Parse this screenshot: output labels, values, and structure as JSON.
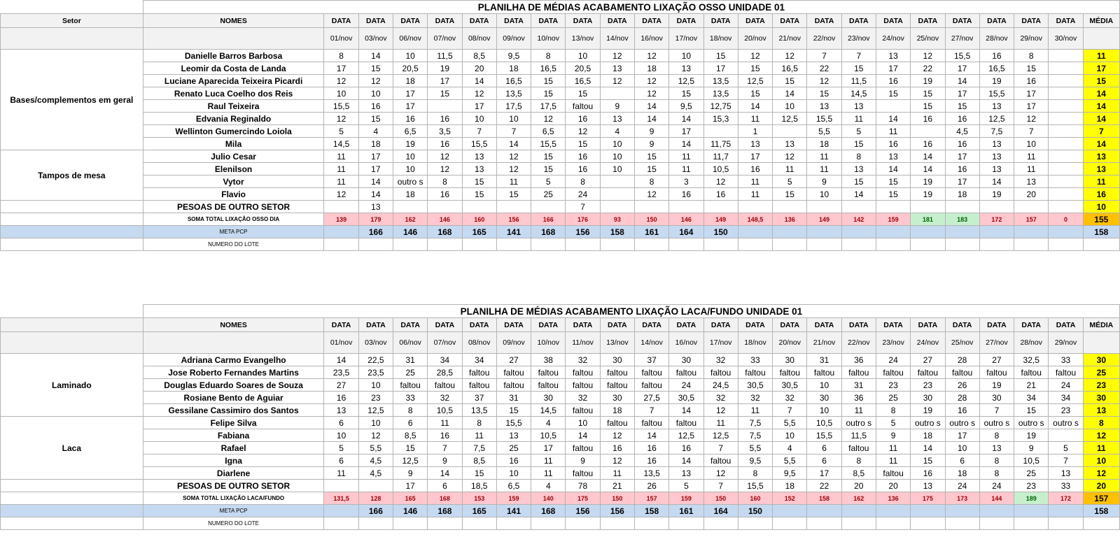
{
  "table1": {
    "title": "PLANILHA DE MÉDIAS ACABAMENTO LIXAÇÃO OSSO UNIDADE 01",
    "sector_header": "Setor",
    "names_header": "NOMES",
    "date_label": "DATA",
    "media_label": "MÉDIA",
    "dates": [
      "01/nov",
      "03/nov",
      "06/nov",
      "07/nov",
      "08/nov",
      "09/nov",
      "10/nov",
      "13/nov",
      "14/nov",
      "16/nov",
      "17/nov",
      "18/nov",
      "20/nov",
      "21/nov",
      "22/nov",
      "23/nov",
      "24/nov",
      "25/nov",
      "27/nov",
      "28/nov",
      "29/nov",
      "30/nov"
    ],
    "groups": [
      {
        "sector": "Bases/complementos em geral",
        "rows": [
          {
            "name": "Danielle Barros Barbosa",
            "values": [
              "8",
              "14",
              "10",
              "11,5",
              "8,5",
              "9,5",
              "8",
              "10",
              "12",
              "12",
              "10",
              "15",
              "12",
              "12",
              "7",
              "7",
              "13",
              "12",
              "15,5",
              "16",
              "8",
              ""
            ],
            "media": "11"
          },
          {
            "name": "Leomir da Costa de Landa",
            "values": [
              "17",
              "15",
              "20,5",
              "19",
              "20",
              "18",
              "16,5",
              "20,5",
              "13",
              "18",
              "13",
              "17",
              "15",
              "16,5",
              "22",
              "15",
              "17",
              "22",
              "17",
              "16,5",
              "15",
              ""
            ],
            "media": "17"
          },
          {
            "name": "Luciane Aparecida Teixeira Picardi",
            "values": [
              "12",
              "12",
              "18",
              "17",
              "14",
              "16,5",
              "15",
              "16,5",
              "12",
              "12",
              "12,5",
              "13,5",
              "12,5",
              "15",
              "12",
              "11,5",
              "16",
              "19",
              "14",
              "19",
              "16",
              ""
            ],
            "media": "15"
          },
          {
            "name": "Renato Luca Coelho dos Reis",
            "values": [
              "10",
              "10",
              "17",
              "15",
              "12",
              "13,5",
              "15",
              "15",
              "",
              "12",
              "15",
              "13,5",
              "15",
              "14",
              "15",
              "14,5",
              "15",
              "15",
              "17",
              "15,5",
              "17",
              ""
            ],
            "media": "14"
          },
          {
            "name": "Raul Teixeira",
            "values": [
              "15,5",
              "16",
              "17",
              "",
              "17",
              "17,5",
              "17,5",
              "faltou",
              "9",
              "14",
              "9,5",
              "12,75",
              "14",
              "10",
              "13",
              "13",
              "",
              "15",
              "15",
              "13",
              "17",
              ""
            ],
            "media": "14"
          },
          {
            "name": "Edvania Reginaldo",
            "values": [
              "12",
              "15",
              "16",
              "16",
              "10",
              "10",
              "12",
              "16",
              "13",
              "14",
              "14",
              "15,3",
              "11",
              "12,5",
              "15,5",
              "11",
              "14",
              "16",
              "16",
              "12,5",
              "12",
              ""
            ],
            "media": "14"
          },
          {
            "name": "Wellinton Gumercindo Loiola",
            "values": [
              "5",
              "4",
              "6,5",
              "3,5",
              "7",
              "7",
              "6,5",
              "12",
              "4",
              "9",
              "17",
              "",
              "1",
              "",
              "5,5",
              "5",
              "11",
              "",
              "4,5",
              "7,5",
              "7",
              ""
            ],
            "media": "7"
          },
          {
            "name": "Mila",
            "values": [
              "14,5",
              "18",
              "19",
              "16",
              "15,5",
              "14",
              "15,5",
              "15",
              "10",
              "9",
              "14",
              "11,75",
              "13",
              "13",
              "18",
              "15",
              "16",
              "16",
              "16",
              "13",
              "10",
              ""
            ],
            "media": "14"
          }
        ]
      },
      {
        "sector": "Tampos de mesa",
        "rows": [
          {
            "name": "Julio Cesar",
            "values": [
              "11",
              "17",
              "10",
              "12",
              "13",
              "12",
              "15",
              "16",
              "10",
              "15",
              "11",
              "11,7",
              "17",
              "12",
              "11",
              "8",
              "13",
              "14",
              "17",
              "13",
              "11",
              ""
            ],
            "media": "13"
          },
          {
            "name": "Elenilson",
            "values": [
              "11",
              "17",
              "10",
              "12",
              "13",
              "12",
              "15",
              "16",
              "10",
              "15",
              "11",
              "10,5",
              "16",
              "11",
              "11",
              "13",
              "14",
              "14",
              "16",
              "13",
              "11",
              ""
            ],
            "media": "13"
          },
          {
            "name": "Vytor",
            "values": [
              "11",
              "14",
              "outro s",
              "8",
              "15",
              "11",
              "5",
              "8",
              "",
              "8",
              "3",
              "12",
              "11",
              "5",
              "9",
              "15",
              "15",
              "19",
              "17",
              "14",
              "13",
              ""
            ],
            "media": "11"
          },
          {
            "name": "Flavio",
            "values": [
              "12",
              "14",
              "18",
              "16",
              "15",
              "15",
              "25",
              "24",
              "",
              "12",
              "16",
              "16",
              "11",
              "15",
              "10",
              "14",
              "15",
              "19",
              "18",
              "19",
              "20",
              ""
            ],
            "media": "16"
          }
        ]
      }
    ],
    "other_sector": {
      "name": "PESOAS DE OUTRO SETOR",
      "values": [
        "",
        "13",
        "",
        "",
        "",
        "",
        "",
        "7",
        "",
        "",
        "",
        "",
        "",
        "",
        "",
        "",
        "",
        "",
        "",
        "",
        "",
        ""
      ],
      "media": "10"
    },
    "total": {
      "label": "SOMA TOTAL LIXAÇÃO OSSO DIA",
      "values": [
        "139",
        "179",
        "162",
        "146",
        "160",
        "156",
        "166",
        "176",
        "93",
        "150",
        "146",
        "149",
        "148,5",
        "136",
        "149",
        "142",
        "159",
        "181",
        "183",
        "172",
        "157",
        "0"
      ],
      "media": "155",
      "green": [
        17,
        18
      ]
    },
    "meta": {
      "label": "META PCP",
      "values": [
        "",
        "166",
        "146",
        "168",
        "165",
        "141",
        "168",
        "156",
        "158",
        "161",
        "164",
        "150",
        "",
        "",
        "",
        "",
        "",
        "",
        "",
        "",
        "",
        ""
      ],
      "media": "158"
    },
    "lote": {
      "label": "NUMERO DO LOTE"
    }
  },
  "table2": {
    "title": "PLANILHA DE MÉDIAS ACABAMENTO LIXAÇÃO LACA/FUNDO UNIDADE 01",
    "names_header": "NOMES",
    "date_label": "DATA",
    "media_label": "MÉDIA",
    "dates": [
      "01/nov",
      "03/nov",
      "06/nov",
      "07/nov",
      "08/nov",
      "09/nov",
      "10/nov",
      "11/nov",
      "13/nov",
      "14/nov",
      "16/nov",
      "17/nov",
      "18/nov",
      "20/nov",
      "21/nov",
      "22/nov",
      "23/nov",
      "24/nov",
      "25/nov",
      "27/nov",
      "28/nov",
      "29/nov"
    ],
    "groups": [
      {
        "sector": "Laminado",
        "rows": [
          {
            "name": "Adriana Carmo Evangelho",
            "values": [
              "14",
              "22,5",
              "31",
              "34",
              "34",
              "27",
              "38",
              "32",
              "30",
              "37",
              "30",
              "32",
              "33",
              "30",
              "31",
              "36",
              "24",
              "27",
              "28",
              "27",
              "32,5",
              "33"
            ],
            "media": "30"
          },
          {
            "name": "Jose Roberto Fernandes Martins",
            "values": [
              "23,5",
              "23,5",
              "25",
              "28,5",
              "faltou",
              "faltou",
              "faltou",
              "faltou",
              "faltou",
              "faltou",
              "faltou",
              "faltou",
              "faltou",
              "faltou",
              "faltou",
              "faltou",
              "faltou",
              "faltou",
              "faltou",
              "faltou",
              "faltou",
              "faltou"
            ],
            "media": "25"
          },
          {
            "name": "Douglas Eduardo Soares de Souza",
            "values": [
              "27",
              "10",
              "faltou",
              "faltou",
              "faltou",
              "faltou",
              "faltou",
              "faltou",
              "faltou",
              "faltou",
              "24",
              "24,5",
              "30,5",
              "30,5",
              "10",
              "31",
              "23",
              "23",
              "26",
              "19",
              "21",
              "24"
            ],
            "media": "23"
          },
          {
            "name": "Rosiane Bento de Aguiar",
            "values": [
              "16",
              "23",
              "33",
              "32",
              "37",
              "31",
              "30",
              "32",
              "30",
              "27,5",
              "30,5",
              "32",
              "32",
              "32",
              "30",
              "36",
              "25",
              "30",
              "28",
              "30",
              "34",
              "34"
            ],
            "media": "30"
          },
          {
            "name": "Gessilane Cassimiro dos Santos",
            "values": [
              "13",
              "12,5",
              "8",
              "10,5",
              "13,5",
              "15",
              "14,5",
              "faltou",
              "18",
              "7",
              "14",
              "12",
              "11",
              "7",
              "10",
              "11",
              "8",
              "19",
              "16",
              "7",
              "15",
              "23"
            ],
            "media": "13"
          }
        ]
      },
      {
        "sector": "Laca",
        "rows": [
          {
            "name": "Felipe Silva",
            "values": [
              "6",
              "10",
              "6",
              "11",
              "8",
              "15,5",
              "4",
              "10",
              "faltou",
              "faltou",
              "faltou",
              "11",
              "7,5",
              "5,5",
              "10,5",
              "outro s",
              "5",
              "outro s",
              "outro s",
              "outro s",
              "outro s",
              "outro s"
            ],
            "media": "8"
          },
          {
            "name": "Fabiana",
            "values": [
              "10",
              "12",
              "8,5",
              "16",
              "11",
              "13",
              "10,5",
              "14",
              "12",
              "14",
              "12,5",
              "12,5",
              "7,5",
              "10",
              "15,5",
              "11,5",
              "9",
              "18",
              "17",
              "8",
              "19",
              ""
            ],
            "media": "12"
          },
          {
            "name": "Rafael",
            "values": [
              "5",
              "5,5",
              "15",
              "7",
              "7,5",
              "25",
              "17",
              "faltou",
              "16",
              "16",
              "16",
              "7",
              "5,5",
              "4",
              "6",
              "faltou",
              "11",
              "14",
              "10",
              "13",
              "9",
              "5"
            ],
            "media": "11"
          },
          {
            "name": "Igna",
            "values": [
              "6",
              "4,5",
              "12,5",
              "9",
              "8,5",
              "16",
              "11",
              "9",
              "12",
              "16",
              "14",
              "faltou",
              "9,5",
              "5,5",
              "6",
              "8",
              "11",
              "15",
              "6",
              "8",
              "10,5",
              "7"
            ],
            "media": "10"
          },
          {
            "name": "Diarlene",
            "values": [
              "11",
              "4,5",
              "9",
              "14",
              "15",
              "10",
              "11",
              "faltou",
              "11",
              "13,5",
              "13",
              "12",
              "8",
              "9,5",
              "17",
              "8,5",
              "faltou",
              "16",
              "18",
              "8",
              "25",
              "13"
            ],
            "media": "12"
          }
        ]
      }
    ],
    "other_sector": {
      "name": "PESOAS DE OUTRO SETOR",
      "values": [
        "",
        "",
        "17",
        "6",
        "18,5",
        "6,5",
        "4",
        "78",
        "21",
        "26",
        "5",
        "7",
        "15,5",
        "18",
        "22",
        "20",
        "20",
        "13",
        "24",
        "24",
        "23",
        "33"
      ],
      "media": "20"
    },
    "total": {
      "label": "SOMA TOTAL LIXAÇÃO LACA/FUNDO",
      "values": [
        "131,5",
        "128",
        "165",
        "168",
        "153",
        "159",
        "140",
        "175",
        "150",
        "157",
        "159",
        "150",
        "160",
        "152",
        "158",
        "162",
        "136",
        "175",
        "173",
        "144",
        "189",
        "172"
      ],
      "media": "157",
      "green": [
        20
      ]
    },
    "meta": {
      "label": "META PCP",
      "values": [
        "",
        "166",
        "146",
        "168",
        "165",
        "141",
        "168",
        "156",
        "156",
        "158",
        "161",
        "164",
        "150",
        "",
        "",
        "",
        "",
        "",
        "",
        "",
        "",
        ""
      ],
      "media": "158"
    },
    "lote": {
      "label": "NUMERO DO LOTE"
    }
  }
}
